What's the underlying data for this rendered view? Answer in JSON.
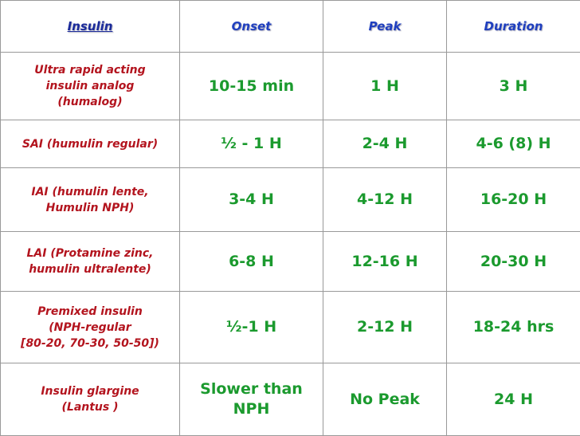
{
  "table": {
    "header": [
      "Insulin",
      "Onset",
      "Peak",
      "Duration"
    ],
    "rows": [
      [
        [
          "Ultra rapid acting",
          "insulin analog",
          "(humalog)"
        ],
        [
          "10-15 min"
        ],
        [
          "1 H"
        ],
        [
          "3 H"
        ]
      ],
      [
        [
          "SAI (humulin regular)"
        ],
        [
          "½ - 1 H"
        ],
        [
          "2-4 H"
        ],
        [
          "4-6 (8) H"
        ]
      ],
      [
        [
          "IAI (humulin lente,",
          "Humulin NPH)"
        ],
        [
          "3-4 H"
        ],
        [
          "4-12 H"
        ],
        [
          "16-20 H"
        ]
      ],
      [
        [
          "LAI (Protamine zinc,",
          "humulin ultralente)"
        ],
        [
          "6-8 H"
        ],
        [
          "12-16 H"
        ],
        [
          "20-30 H"
        ]
      ],
      [
        [
          "Premixed insulin",
          "(NPH-regular",
          "[80-20, 70-30, 50-50])"
        ],
        [
          "½-1 H"
        ],
        [
          "2-12 H"
        ],
        [
          "18-24 hrs"
        ]
      ],
      [
        [
          "Insulin glargine",
          "(Lantus )"
        ],
        [
          "Slower than",
          "NPH"
        ],
        [
          "No Peak"
        ],
        [
          "24 H"
        ]
      ]
    ]
  }
}
